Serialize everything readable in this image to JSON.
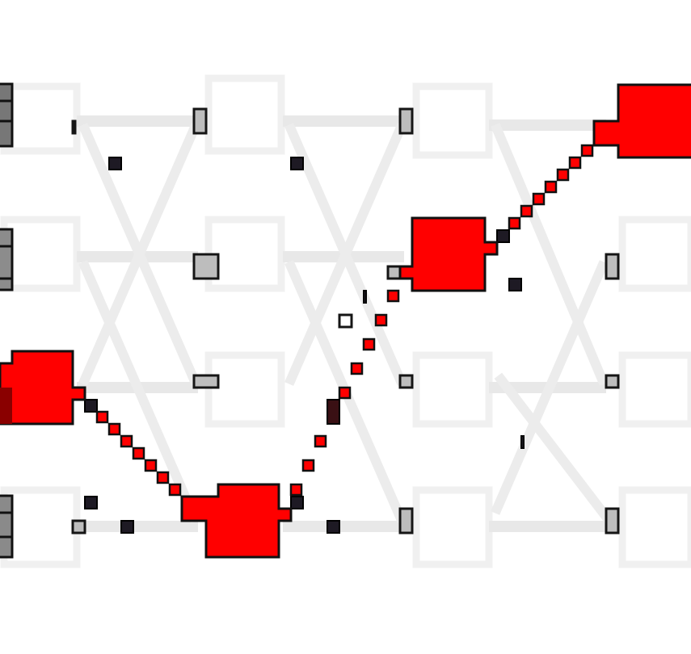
{
  "diagram": {
    "kind": "pixelated node graph with highlighted path",
    "columns": 4,
    "rows": 4,
    "highlighted_path": [
      "row3-col0",
      "row4-col1",
      "row2-col2",
      "row1-col3"
    ],
    "colors": {
      "highlight": "#ff0000",
      "highlight_dark": "#8a0000",
      "node_outline": "#111111",
      "node_gray": "#bbbbbb",
      "node_dark": "#1e1a24",
      "faint_edge": "#e6e6e6",
      "faint_box": "#f1f1f1",
      "background": "#ffffff"
    }
  }
}
